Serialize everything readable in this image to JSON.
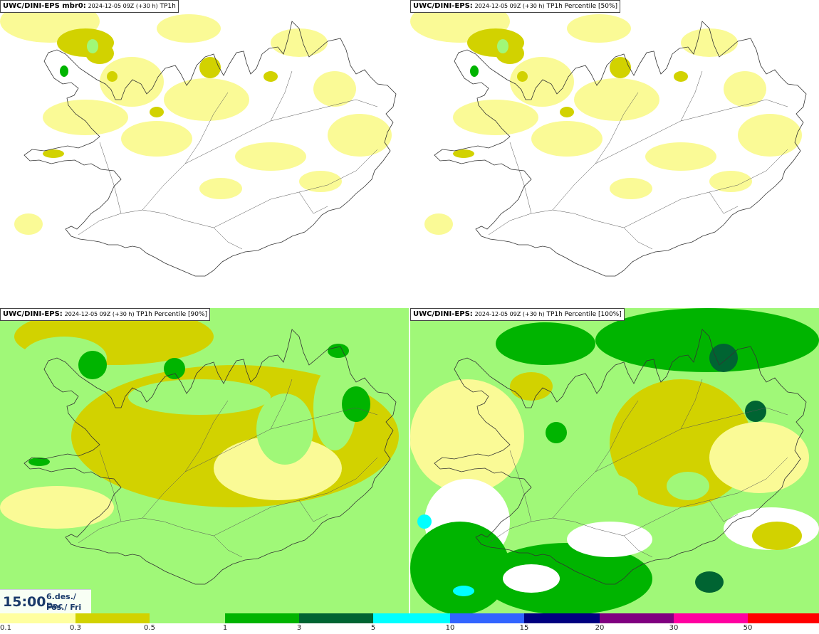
{
  "panels": [
    {
      "model": "UWC/DINI-EPS mbr0:",
      "meta": "2024-12-05 09Z (+30 h)",
      "param": "TP1h",
      "level": 0
    },
    {
      "model": "UWC/DINI-EPS:",
      "meta": "2024-12-05 09Z (+30 h)",
      "param": "TP1h Percentile [50%]",
      "level": 0
    },
    {
      "model": "UWC/DINI-EPS:",
      "meta": "2024-12-05 09Z (+30 h)",
      "param": "TP1h Percentile [90%]",
      "level": 1
    },
    {
      "model": "UWC/DINI-EPS:",
      "meta": "2024-12-05 09Z (+30 h)",
      "param": "TP1h Percentile [100%]",
      "level": 2
    }
  ],
  "time": {
    "clock": "15:00",
    "date_line1": "6.des./ Dec",
    "date_line2": "Fös./ Fri"
  },
  "legend": {
    "ticks": [
      "0.1",
      "0.3",
      "0.5",
      "1",
      "3",
      "5",
      "10",
      "15",
      "20",
      "30",
      "50"
    ],
    "colors": [
      "#ffffa0",
      "#d2d200",
      "#a0f878",
      "#00b400",
      "#006432",
      "#00ffff",
      "#3264ff",
      "#000080",
      "#800080",
      "#ff00a0",
      "#ff0000"
    ]
  },
  "colors": {
    "p01": "#fafa96",
    "p03": "#d2d200",
    "p05": "#a0f878",
    "p1": "#00b400",
    "p3": "#006432",
    "p5": "#00ffff",
    "coast": "#333333"
  }
}
